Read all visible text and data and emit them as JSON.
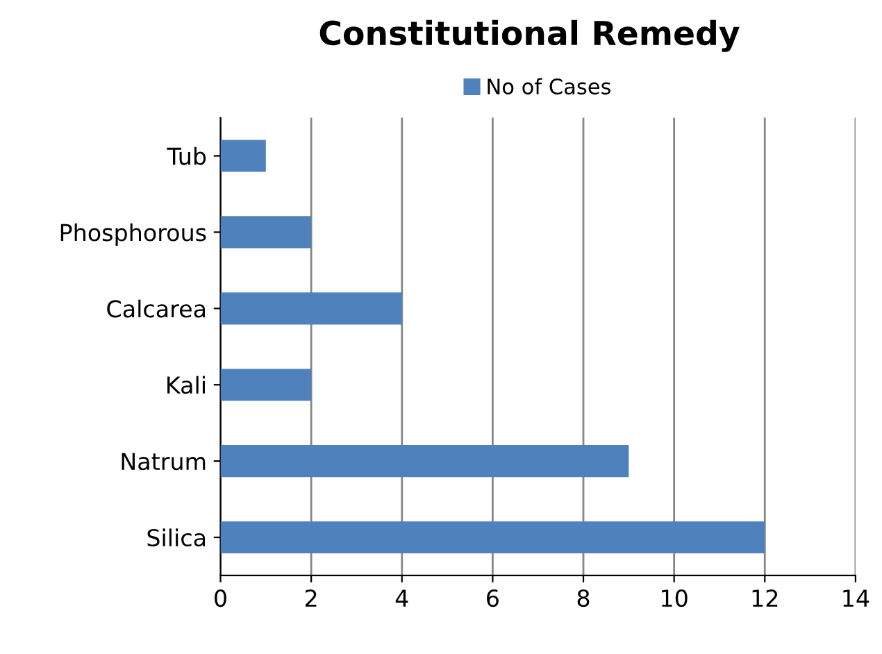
{
  "chart_data": {
    "type": "bar",
    "orientation": "horizontal",
    "title": "Constitutional Remedy",
    "categories": [
      "Tub",
      "Phosphorous",
      "Calcarea",
      "Kali",
      "Natrum",
      "Silica"
    ],
    "series": [
      {
        "name": "No of Cases",
        "color": "#4f81bd",
        "values": [
          1,
          2,
          4,
          2,
          9,
          12
        ]
      }
    ],
    "xlim": [
      0,
      14
    ],
    "xticks": [
      0,
      2,
      4,
      6,
      8,
      10,
      12,
      14
    ],
    "grid": "x",
    "legend": "top"
  }
}
